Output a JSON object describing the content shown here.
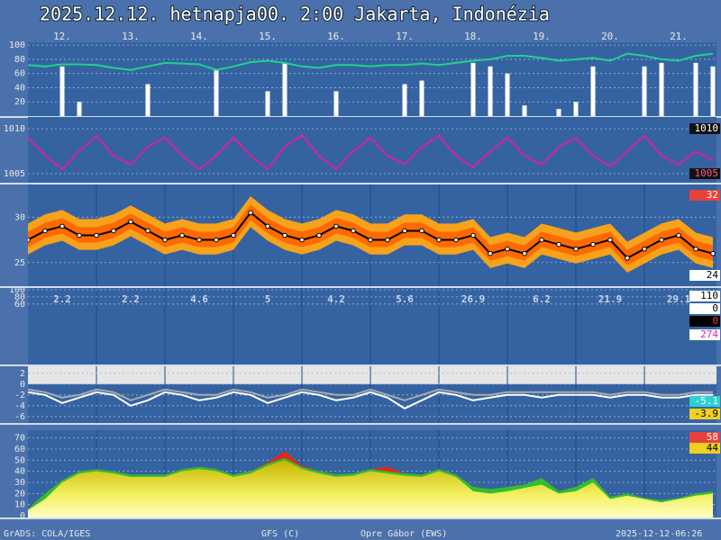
{
  "title": "2025.12.12. hetnapja00. 2:00   Jakarta, Indonézia",
  "footer": [
    "GrADS: COLA/IGES",
    "GFS (C)",
    "Opre Gábor (EWS)",
    "2025-12-12-06:26"
  ],
  "chart_data": [
    {
      "type": "bar",
      "categories": [
        "12.",
        "13.",
        "14.",
        "15.",
        "16.",
        "17.",
        "18.",
        "19.",
        "20.",
        "21."
      ],
      "xlim": [
        0,
        240
      ],
      "x": [
        0,
        6,
        12,
        18,
        24,
        30,
        36,
        42,
        48,
        54,
        60,
        66,
        72,
        78,
        84,
        90,
        96,
        102,
        108,
        114,
        120,
        126,
        132,
        138,
        144,
        150,
        156,
        162,
        168,
        174,
        180,
        186,
        192,
        198,
        204,
        210,
        216,
        222,
        228,
        234,
        240
      ],
      "ylim": [
        0,
        104
      ],
      "yticks": [
        20,
        40,
        60,
        80,
        100
      ],
      "grid": true,
      "series": [
        {
          "type": "bar",
          "color": "#ffffff",
          "values": [
            0,
            0,
            70,
            20,
            0,
            0,
            0,
            45,
            0,
            0,
            0,
            65,
            0,
            0,
            35,
            75,
            0,
            0,
            35,
            0,
            0,
            0,
            45,
            50,
            0,
            0,
            75,
            70,
            60,
            15,
            0,
            10,
            20,
            70,
            0,
            0,
            70,
            75,
            0,
            75,
            70
          ]
        },
        {
          "type": "line",
          "color": "#1fd38a",
          "values": [
            72,
            70,
            73,
            73,
            72,
            68,
            65,
            70,
            75,
            74,
            73,
            65,
            70,
            76,
            78,
            75,
            70,
            68,
            72,
            72,
            70,
            72,
            72,
            74,
            72,
            75,
            78,
            80,
            85,
            85,
            82,
            78,
            80,
            82,
            78,
            88,
            85,
            80,
            78,
            85,
            88
          ]
        }
      ]
    },
    {
      "type": "line",
      "ylim": [
        1004,
        1011.3
      ],
      "yticks": [
        1005,
        1010
      ],
      "grid": true,
      "series": [
        {
          "type": "line",
          "color": "#d6239a",
          "values": [
            1009,
            1007,
            1005.5,
            1007.5,
            1009.2,
            1007,
            1006,
            1008,
            1009,
            1007,
            1005.5,
            1007,
            1009,
            1007,
            1005.5,
            1008,
            1009.3,
            1007,
            1005.5,
            1007.5,
            1009,
            1007,
            1006,
            1008,
            1009.2,
            1007,
            1005.7,
            1007.5,
            1009,
            1007,
            1006,
            1008,
            1009,
            1007,
            1005.8,
            1007.5,
            1009.2,
            1007,
            1006,
            1007.5,
            1006.5
          ]
        }
      ],
      "badges": [
        {
          "value": 1010,
          "color": "#111111",
          "text_color": "#ffffff"
        },
        {
          "value": 1005,
          "color": "#111111",
          "text_color": "#ff5a8a"
        }
      ]
    },
    {
      "type": "band",
      "ylim": [
        22.4,
        33.6
      ],
      "yticks": [
        25,
        30
      ],
      "grid": true,
      "series": [
        {
          "type": "band",
          "color": "#f7a21b",
          "values": [
            29.3,
            30.3,
            30.8,
            29.8,
            29.8,
            30.3,
            31.3,
            30.3,
            29.3,
            29.8,
            29.3,
            29.3,
            29.8,
            32.3,
            30.8,
            29.8,
            29.3,
            29.8,
            30.8,
            30.3,
            29.3,
            29.3,
            30.3,
            30.3,
            29.3,
            29.3,
            29.8,
            27.8,
            28.3,
            27.8,
            29.3,
            28.8,
            28.3,
            28.8,
            29.3,
            27.3,
            28.3,
            29.3,
            29.8,
            28.3,
            27.8
          ],
          "low": [
            25.9,
            26.9,
            27.4,
            26.4,
            26.4,
            26.9,
            27.9,
            26.9,
            25.9,
            26.4,
            25.9,
            25.9,
            26.4,
            28.9,
            27.4,
            26.4,
            25.9,
            26.4,
            27.4,
            26.9,
            25.9,
            25.9,
            26.9,
            26.9,
            25.9,
            25.9,
            26.4,
            24.4,
            24.9,
            24.4,
            25.9,
            25.4,
            24.9,
            25.4,
            25.9,
            23.9,
            24.9,
            25.9,
            26.4,
            24.9,
            24.4
          ]
        },
        {
          "type": "band",
          "color": "#ff6a00",
          "values": [
            28.4,
            29.4,
            29.9,
            28.9,
            28.9,
            29.4,
            30.4,
            29.4,
            28.4,
            28.9,
            28.4,
            28.4,
            28.9,
            31.4,
            29.9,
            28.9,
            28.4,
            28.9,
            29.9,
            29.4,
            28.4,
            28.4,
            29.4,
            29.4,
            28.4,
            28.4,
            28.9,
            26.9,
            27.4,
            26.9,
            28.4,
            27.9,
            27.4,
            27.9,
            28.4,
            26.4,
            27.4,
            28.4,
            28.9,
            27.4,
            26.9
          ],
          "low": [
            26.7,
            27.7,
            28.2,
            27.2,
            27.2,
            27.7,
            28.7,
            27.7,
            26.7,
            27.2,
            26.7,
            26.7,
            27.2,
            29.7,
            28.2,
            27.2,
            26.7,
            27.2,
            28.2,
            27.7,
            26.7,
            26.7,
            27.7,
            27.7,
            26.7,
            26.7,
            27.2,
            25.2,
            25.7,
            25.2,
            26.7,
            26.2,
            25.7,
            26.2,
            26.7,
            24.7,
            25.7,
            26.7,
            27.2,
            25.7,
            25.2
          ]
        },
        {
          "type": "line",
          "color": "#000000",
          "dots": true,
          "values": [
            27.5,
            28.5,
            29,
            28,
            28,
            28.5,
            29.5,
            28.5,
            27.5,
            28,
            27.5,
            27.5,
            28,
            30.5,
            29,
            28,
            27.5,
            28,
            29,
            28.5,
            27.5,
            27.5,
            28.5,
            28.5,
            27.5,
            27.5,
            28,
            26,
            26.5,
            26,
            27.5,
            27,
            26.5,
            27,
            27.5,
            25.5,
            26.5,
            27.5,
            28,
            26.5,
            26
          ]
        }
      ],
      "badges": [
        {
          "value": 32,
          "color": "#e8413c",
          "text_color": "#ffffff"
        },
        {
          "value": 24,
          "color": "#ffffff",
          "text_color": "#000000"
        }
      ]
    },
    {
      "type": "text",
      "ylim": [
        -110,
        105
      ],
      "yticks": [
        100,
        80,
        60
      ],
      "grid": true,
      "values": [
        2.2,
        2.2,
        4.6,
        5,
        4.2,
        5.6,
        26.9,
        6.2,
        21.9,
        29.1
      ],
      "badges": [
        {
          "value": 110,
          "color": "#ffffff",
          "text_color": "#000000"
        },
        {
          "value": 0,
          "color": "#ffffff",
          "text_color": "#000000"
        },
        {
          "value": 0,
          "color": "#000000",
          "text_color": "#ff3030"
        },
        {
          "value": 274,
          "color": "#ffffff",
          "text_color": "#d020c0"
        }
      ]
    },
    {
      "type": "line",
      "ylim": [
        -7.2,
        3.3
      ],
      "yticks": [
        2,
        0,
        -2,
        -4,
        -6
      ],
      "grid": true,
      "series": [
        {
          "type": "line",
          "color": "#aaaaaa",
          "values": [
            -1,
            -1.5,
            -2.5,
            -2,
            -1,
            -1.5,
            -3,
            -2,
            -1,
            -1.5,
            -2,
            -2,
            -1,
            -1.5,
            -2.5,
            -2,
            -1,
            -1.5,
            -2,
            -2,
            -1,
            -2,
            -3,
            -2,
            -1,
            -1.5,
            -2,
            -2,
            -1.5,
            -1.5,
            -1.5,
            -1.5,
            -1.5,
            -1.5,
            -2,
            -1.5,
            -1.5,
            -2,
            -2,
            -1.5,
            -1.5
          ]
        },
        {
          "type": "line",
          "color": "#ffffff",
          "values": [
            -1.5,
            -2,
            -3.5,
            -2.5,
            -1.5,
            -2,
            -4,
            -3,
            -1.5,
            -2,
            -3,
            -2.5,
            -1.5,
            -2,
            -3.5,
            -2.5,
            -1.5,
            -2,
            -3,
            -2.5,
            -1.5,
            -2.5,
            -4.5,
            -3,
            -1.5,
            -2,
            -3,
            -2.5,
            -2,
            -2,
            -2.5,
            -2,
            -2,
            -2,
            -2.5,
            -2,
            -2,
            -2.5,
            -2.5,
            -2,
            -2
          ]
        }
      ],
      "badges": [
        {
          "value": -5.1,
          "color": "#2ed0d0",
          "text_color": "#ffffff"
        },
        {
          "value": -3.9,
          "color": "#f0d020",
          "text_color": "#000000"
        }
      ]
    },
    {
      "type": "area",
      "ylim": [
        -1.6,
        77
      ],
      "yticks": [
        0,
        10,
        20,
        30,
        40,
        50,
        60,
        70
      ],
      "grid": true,
      "series": [
        {
          "type": "area",
          "color": "#e8251a",
          "values": [
            6,
            20,
            32,
            40,
            42,
            40,
            37,
            37,
            37,
            42,
            44,
            42,
            37,
            40,
            48,
            58,
            45,
            40,
            37,
            38,
            42,
            44,
            38,
            37,
            42,
            37,
            26,
            24,
            26,
            28,
            34,
            22,
            26,
            34,
            17,
            20,
            16,
            14,
            16,
            20,
            22
          ]
        },
        {
          "type": "area",
          "color": "#2fbf2f",
          "values": [
            6,
            20,
            32,
            40,
            42,
            40,
            37,
            37,
            37,
            42,
            44,
            42,
            37,
            40,
            47,
            52,
            44,
            40,
            37,
            38,
            42,
            40,
            38,
            37,
            42,
            37,
            26,
            24,
            26,
            28,
            34,
            22,
            26,
            34,
            17,
            20,
            16,
            14,
            16,
            20,
            22
          ]
        },
        {
          "type": "area",
          "color": "url(#yel)",
          "values": [
            5,
            15,
            30,
            38,
            40,
            38,
            35,
            35,
            35,
            40,
            42,
            40,
            35,
            38,
            45,
            50,
            42,
            38,
            35,
            36,
            40,
            38,
            36,
            35,
            40,
            35,
            22,
            20,
            22,
            25,
            28,
            20,
            22,
            30,
            15,
            18,
            15,
            12,
            15,
            18,
            20
          ]
        }
      ],
      "badges": [
        {
          "value": 58,
          "color": "#e8413c",
          "text_color": "#ffffff"
        },
        {
          "value": 44,
          "color": "#f0d020",
          "text_color": "#000000"
        }
      ]
    }
  ]
}
